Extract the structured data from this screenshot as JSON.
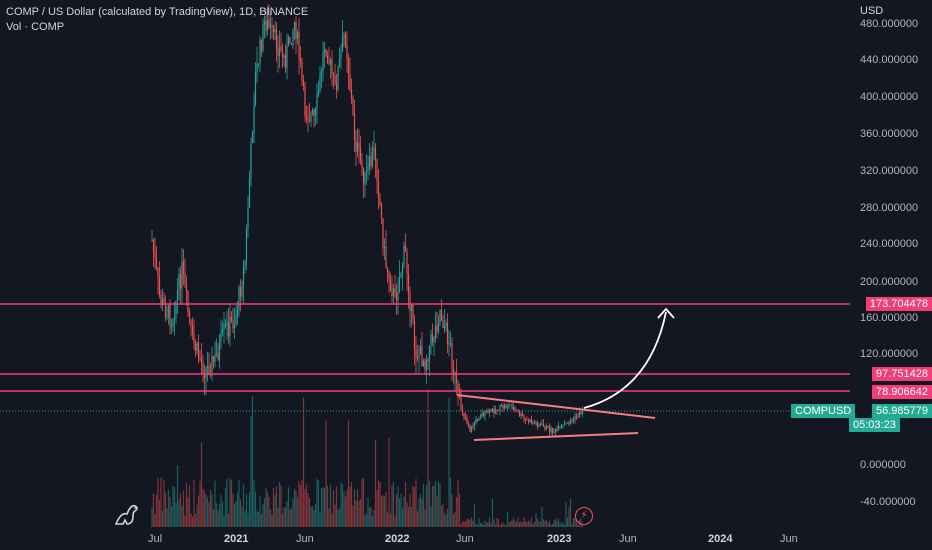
{
  "header": {
    "title": "COMP / US Dollar (calculated by TradingView), 1D, BINANCE",
    "volume_label": "Vol · COMP",
    "currency": "USD"
  },
  "price_axis": {
    "ticks": [
      "480.000000",
      "440.000000",
      "400.000000",
      "360.000000",
      "320.000000",
      "280.000000",
      "240.000000",
      "200.000000",
      "160.000000",
      "120.000000",
      "0.000000",
      "-40.000000"
    ]
  },
  "time_axis": {
    "labels": [
      "Jul",
      "2021",
      "Jun",
      "2022",
      "Jun",
      "2023",
      "Jun",
      "2024",
      "Jun"
    ]
  },
  "levels": [
    {
      "value": "173.704478",
      "color": "#f23d7a"
    },
    {
      "value": "97.751428",
      "color": "#f23d7a"
    },
    {
      "value": "78.906642",
      "color": "#f23d7a"
    }
  ],
  "symbol_tag": {
    "symbol": "COMPUSD",
    "price": "56.985779",
    "countdown": "05:03:23",
    "color": "#22ab94"
  },
  "colors": {
    "background": "#131722",
    "up": "#26a69a",
    "down": "#ef5350",
    "trendline": "#f77c80",
    "arrow": "#ffffff"
  },
  "icons": {
    "logo": "tradingview-dino-icon",
    "alert": "flash-icon"
  }
}
